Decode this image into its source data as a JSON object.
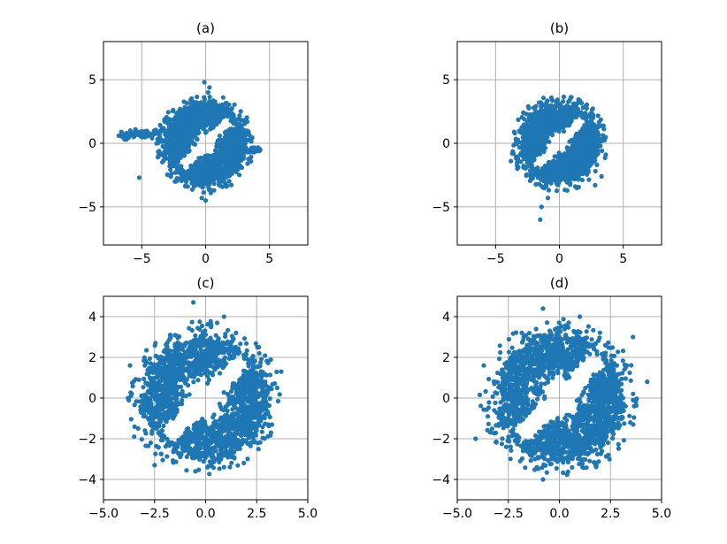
{
  "chart_data": [
    {
      "type": "scatter",
      "title": "(a)",
      "xlim": [
        -8,
        8
      ],
      "ylim": [
        -8,
        8
      ],
      "xticks": [
        -5,
        0,
        5
      ],
      "yticks": [
        -5,
        0,
        5
      ],
      "xticklabels": [
        "−5",
        "0",
        "5"
      ],
      "yticklabels": [
        "−5",
        "0",
        "5"
      ],
      "grid": true,
      "color": "#1f77b4",
      "distribution": {
        "ring_inner": 1.6,
        "ring_outer": 3.1,
        "gap_direction": "diagonal",
        "extra_arms": "horizontal tails to x≈-6.8 and x≈4.3"
      },
      "points": [
        [
          -6.8,
          0.6
        ],
        [
          -6.6,
          0.9
        ],
        [
          -6.2,
          0.8
        ],
        [
          -5.9,
          1.0
        ],
        [
          -5.5,
          1.1
        ],
        [
          -5.2,
          -2.7
        ],
        [
          -4.8,
          0.9
        ],
        [
          -4.5,
          0.6
        ],
        [
          -4.2,
          0.4
        ],
        [
          -3.9,
          0.8
        ],
        [
          -3.6,
          0.5
        ],
        [
          -3.3,
          1.2
        ],
        [
          -3.0,
          1.6
        ],
        [
          -0.1,
          4.8
        ],
        [
          0.3,
          4.4
        ],
        [
          0.2,
          4.0
        ],
        [
          3.9,
          -0.4
        ],
        [
          4.2,
          -0.6
        ],
        [
          0.0,
          -4.5
        ],
        [
          -0.3,
          -4.3
        ],
        [
          0.4,
          -3.9
        ],
        [
          -0.9,
          -3.4
        ],
        [
          -1.8,
          -2.2
        ],
        [
          -2.4,
          -3.0
        ]
      ]
    },
    {
      "type": "scatter",
      "title": "(b)",
      "xlim": [
        -8,
        8
      ],
      "ylim": [
        -8,
        8
      ],
      "xticks": [
        -5,
        0,
        5
      ],
      "yticks": [
        -5,
        0,
        5
      ],
      "xticklabels": [
        "−5",
        "0",
        "5"
      ],
      "yticklabels": [
        "−5",
        "0",
        "5"
      ],
      "grid": true,
      "color": "#1f77b4",
      "distribution": {
        "ring_inner": 1.5,
        "ring_outer": 3.0,
        "gap_direction": "diagonal"
      },
      "points": [
        [
          -1.5,
          -6.0
        ],
        [
          -1.4,
          -5.0
        ],
        [
          -0.9,
          -4.3
        ],
        [
          -3.6,
          -0.8
        ],
        [
          -3.8,
          -1.4
        ],
        [
          -3.3,
          -2.0
        ],
        [
          3.3,
          -2.6
        ],
        [
          2.8,
          -3.3
        ],
        [
          -1.6,
          3.2
        ],
        [
          -2.6,
          2.3
        ]
      ]
    },
    {
      "type": "scatter",
      "title": "(c)",
      "xlim": [
        -5,
        5
      ],
      "ylim": [
        -5,
        5
      ],
      "xticks": [
        -5,
        -2.5,
        0,
        2.5,
        5
      ],
      "yticks": [
        -4,
        -2,
        0,
        2,
        4
      ],
      "xticklabels": [
        "−5.0",
        "−2.5",
        "0.0",
        "2.5",
        "5.0"
      ],
      "yticklabels": [
        "−4",
        "−2",
        "0",
        "2",
        "4"
      ],
      "grid": true,
      "color": "#1f77b4",
      "distribution": {
        "ring_inner": 1.6,
        "ring_outer": 3.0,
        "gap_direction": "diagonal"
      },
      "points": [
        [
          -0.6,
          4.7
        ],
        [
          0.9,
          4.0
        ],
        [
          3.7,
          1.3
        ],
        [
          3.5,
          0.5
        ],
        [
          -3.7,
          1.6
        ],
        [
          -3.8,
          0.0
        ],
        [
          -3.5,
          -1.9
        ],
        [
          -2.5,
          -3.3
        ],
        [
          -0.5,
          -3.6
        ],
        [
          0.9,
          -3.4
        ],
        [
          3.2,
          -1.7
        ],
        [
          2.6,
          2.5
        ]
      ]
    },
    {
      "type": "scatter",
      "title": "(d)",
      "xlim": [
        -5,
        5
      ],
      "ylim": [
        -5,
        5
      ],
      "xticks": [
        -5,
        -2.5,
        0,
        2.5,
        5
      ],
      "yticks": [
        -4,
        -2,
        0,
        2,
        4
      ],
      "xticklabels": [
        "−5.0",
        "−2.5",
        "0.0",
        "2.5",
        "5.0"
      ],
      "yticklabels": [
        "−4",
        "−2",
        "0",
        "2",
        "4"
      ],
      "grid": true,
      "color": "#1f77b4",
      "distribution": {
        "ring_inner": 1.6,
        "ring_outer": 3.1,
        "gap_direction": "diagonal"
      },
      "points": [
        [
          -0.8,
          4.4
        ],
        [
          4.3,
          0.8
        ],
        [
          3.6,
          3.0
        ],
        [
          3.3,
          1.6
        ],
        [
          -4.1,
          -2.0
        ],
        [
          -3.5,
          -0.9
        ],
        [
          -3.7,
          1.6
        ],
        [
          -2.6,
          -2.4
        ],
        [
          -1.1,
          -3.4
        ],
        [
          -0.8,
          -4.0
        ],
        [
          2.4,
          -2.8
        ],
        [
          1.0,
          4.0
        ]
      ]
    }
  ]
}
